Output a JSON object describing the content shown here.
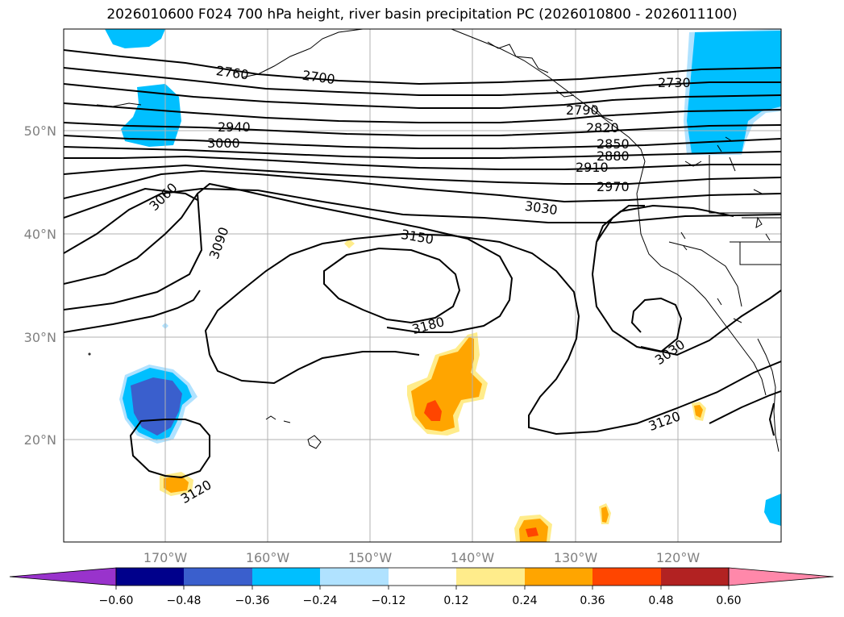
{
  "title": "2026010600 F024 700 hPa height, river basin precipitation PC (2026010800 - 2026011100)",
  "map": {
    "lon_labels": [
      "170°W",
      "160°W",
      "150°W",
      "140°W",
      "130°W",
      "120°W"
    ],
    "lat_labels": [
      "50°N",
      "40°N",
      "30°N",
      "20°N"
    ],
    "contour_labels": [
      {
        "id": "c2760",
        "text": "2760"
      },
      {
        "id": "c2700",
        "text": "2700"
      },
      {
        "id": "c2730",
        "text": "2730"
      },
      {
        "id": "c2790",
        "text": "2790"
      },
      {
        "id": "c2820",
        "text": "2820"
      },
      {
        "id": "c2850",
        "text": "2850"
      },
      {
        "id": "c2880",
        "text": "2880"
      },
      {
        "id": "c2910",
        "text": "2910"
      },
      {
        "id": "c2970",
        "text": "2970"
      },
      {
        "id": "c3030a",
        "text": "3030"
      },
      {
        "id": "c2940",
        "text": "2940"
      },
      {
        "id": "c3000",
        "text": "3000"
      },
      {
        "id": "c3060",
        "text": "3060"
      },
      {
        "id": "c3090",
        "text": "3090"
      },
      {
        "id": "c3150",
        "text": "3150"
      },
      {
        "id": "c3180",
        "text": "3180"
      },
      {
        "id": "c3030b",
        "text": "3030"
      },
      {
        "id": "c3120a",
        "text": "3120"
      },
      {
        "id": "c3120b",
        "text": "3120"
      }
    ]
  },
  "colorbar": {
    "ticks": [
      "−0.60",
      "−0.48",
      "−0.36",
      "−0.24",
      "−0.12",
      "0.12",
      "0.24",
      "0.36",
      "0.48",
      "0.60"
    ],
    "colors": [
      "#9933cc",
      "#00008b",
      "#3a5fcd",
      "#00bfff",
      "#b0e2ff",
      "#ffffff",
      "#ffec8b",
      "#ffa500",
      "#ff4500",
      "#b22222",
      "#ff88aa"
    ]
  }
}
